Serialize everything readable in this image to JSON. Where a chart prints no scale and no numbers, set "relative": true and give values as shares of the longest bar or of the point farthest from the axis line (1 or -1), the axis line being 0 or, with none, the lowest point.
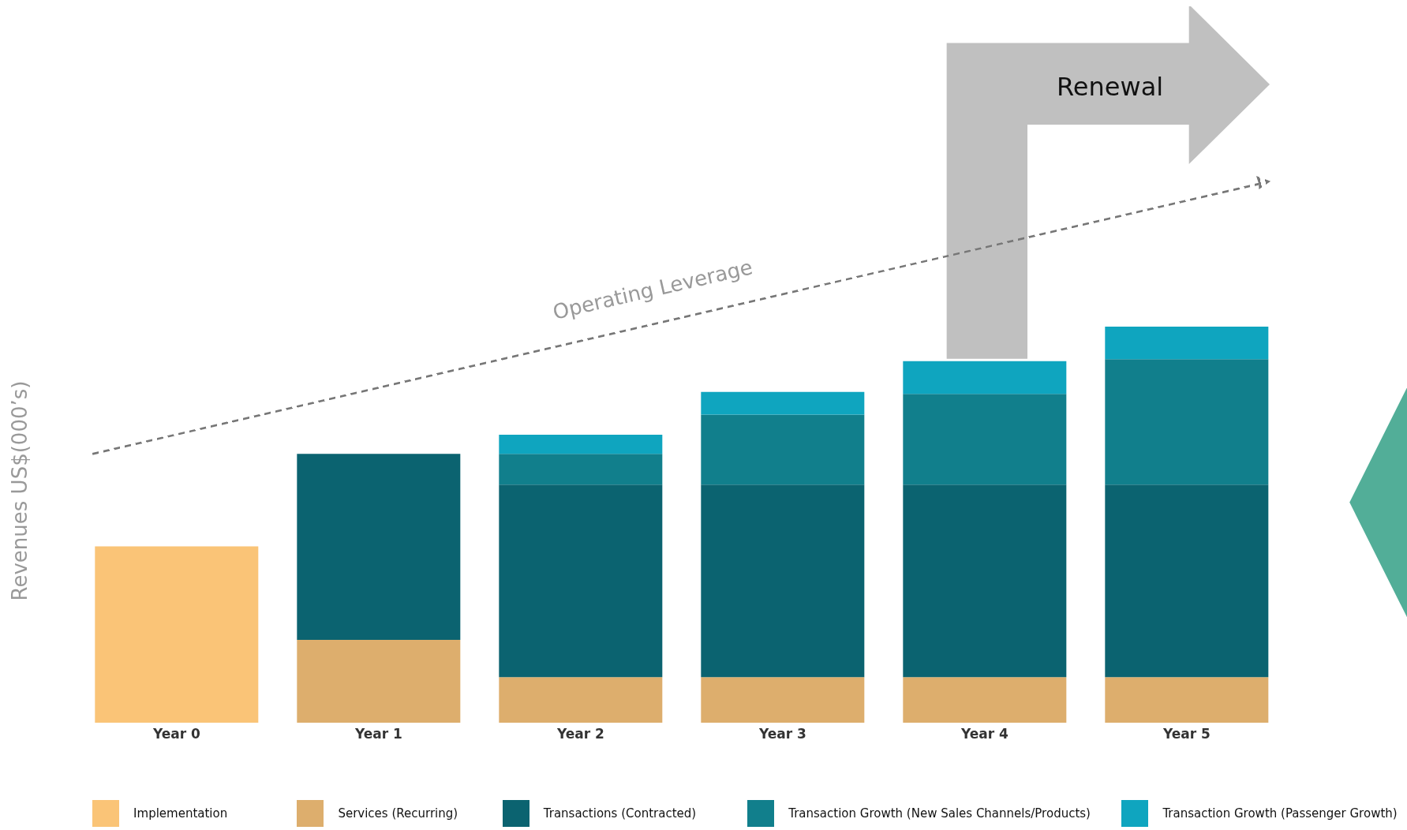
{
  "chart_data": {
    "type": "bar",
    "stacked": true,
    "relative": true,
    "ylabel": "Revenues US$(000’s)",
    "legend": "bottom",
    "annotations": [
      "Renewal",
      "Operating Leverage"
    ],
    "categories": [
      "Year 0",
      "Year 1",
      "Year 2",
      "Year 3",
      "Year 4",
      "Year 5"
    ],
    "series": [
      {
        "name": "Implementation",
        "color": "#fac477",
        "values": [
          0.445,
          null,
          null,
          null,
          null,
          null
        ]
      },
      {
        "name": "Services (Recurring)",
        "color": "#ddae6d",
        "values": [
          null,
          0.209,
          0.115,
          0.115,
          0.115,
          0.115
        ]
      },
      {
        "name": "Transactions (Contracted)",
        "color": "#0b6370",
        "values": [
          null,
          0.47,
          0.486,
          0.486,
          0.486,
          0.486
        ]
      },
      {
        "name": "Transaction Growth (New Sales Channels/Products)",
        "color": "#117f8c",
        "values": [
          null,
          null,
          0.078,
          0.177,
          0.229,
          0.317
        ]
      },
      {
        "name": "Transaction Growth (Passenger Growth)",
        "color": "#0fa5bf",
        "values": [
          null,
          null,
          0.048,
          0.057,
          0.083,
          0.082
        ]
      }
    ]
  }
}
